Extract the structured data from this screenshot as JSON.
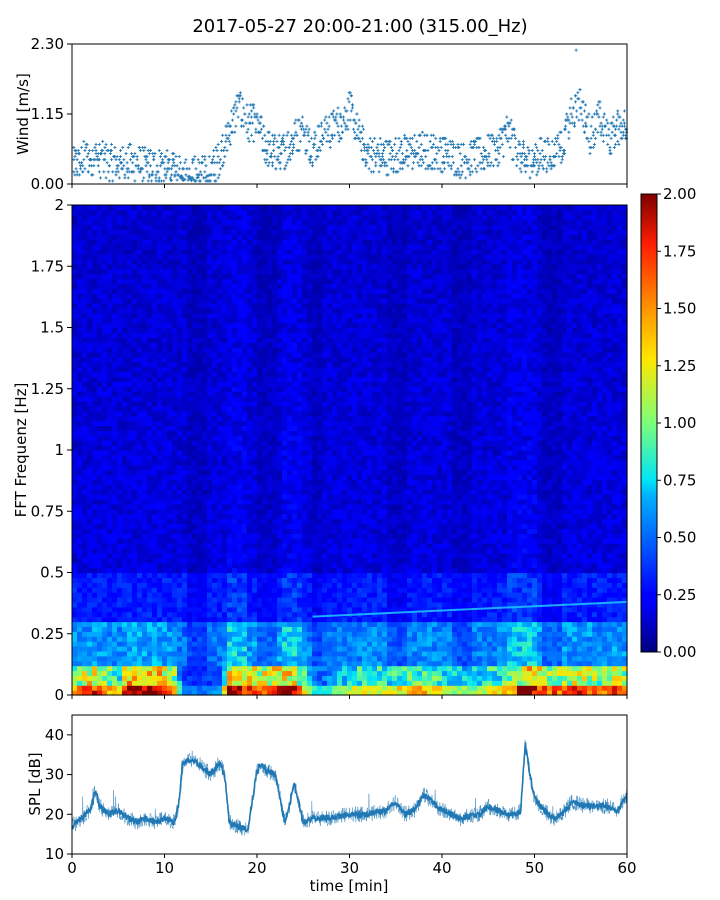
{
  "figure": {
    "title": "2017-05-27 20:00-21:00 (315.00_Hz)"
  },
  "chart_data": [
    {
      "type": "scatter",
      "panel": "wind",
      "title": "",
      "xlabel": "",
      "ylabel": "Wind [m/s]",
      "xlim": [
        0,
        60
      ],
      "ylim": [
        0,
        2.3
      ],
      "yticks": [
        0.0,
        1.15,
        2.3
      ],
      "ytick_labels": [
        "0.00",
        "1.15",
        "2.30"
      ],
      "xticks": [
        0,
        10,
        20,
        30,
        40,
        50,
        60
      ],
      "marker": "+",
      "color": "#1f77b4",
      "series_profile": {
        "x": [
          0,
          2,
          4,
          6,
          8,
          10,
          12,
          14,
          15,
          16,
          17,
          18,
          19,
          20,
          21,
          22,
          23,
          24,
          25,
          26,
          27,
          28,
          29,
          30,
          31,
          32,
          34,
          36,
          38,
          40,
          42,
          44,
          46,
          47,
          48,
          49,
          50,
          52,
          53,
          54,
          55,
          56,
          57,
          58,
          59,
          60
        ],
        "y": [
          0.3,
          0.45,
          0.35,
          0.35,
          0.3,
          0.3,
          0.15,
          0.15,
          0.2,
          0.45,
          0.9,
          1.25,
          1.0,
          1.0,
          0.6,
          0.5,
          0.55,
          0.75,
          0.85,
          0.6,
          0.75,
          0.9,
          1.0,
          1.25,
          0.8,
          0.5,
          0.45,
          0.5,
          0.55,
          0.5,
          0.4,
          0.45,
          0.6,
          0.85,
          0.6,
          0.35,
          0.45,
          0.5,
          0.65,
          1.1,
          1.3,
          0.8,
          1.1,
          0.7,
          0.95,
          1.0
        ]
      },
      "peak": {
        "x": 54.5,
        "y": 2.2
      }
    },
    {
      "type": "heatmap",
      "panel": "spectrogram",
      "title": "",
      "xlabel": "",
      "ylabel": "FFT Frequenz [Hz]",
      "xlim": [
        0,
        60
      ],
      "ylim": [
        0,
        2
      ],
      "yticks": [
        0,
        0.25,
        0.5,
        0.75,
        1,
        1.25,
        1.5,
        1.75,
        2
      ],
      "ytick_labels": [
        "0",
        "0.25",
        "0.5",
        "0.75",
        "1",
        "1.25",
        "1.5",
        "1.75",
        "2"
      ],
      "colormap": "jet",
      "colorbar": {
        "range": [
          0,
          2
        ],
        "ticks": [
          0.0,
          0.25,
          0.5,
          0.75,
          1.0,
          1.25,
          1.5,
          1.75,
          2.0
        ],
        "tick_labels": [
          "0.00",
          "0.25",
          "0.50",
          "0.75",
          "1.00",
          "1.25",
          "1.50",
          "1.75",
          "2.00"
        ]
      },
      "low_band_intensity": {
        "x": [
          0,
          2,
          5,
          6,
          9,
          11,
          12,
          14,
          16,
          17,
          19,
          20,
          22,
          24,
          25,
          26,
          27,
          28,
          30,
          32,
          34,
          36,
          38,
          41,
          43,
          45,
          47,
          49,
          51,
          53,
          55,
          57,
          59,
          60
        ],
        "level": [
          1.5,
          1.8,
          1.2,
          2.0,
          2.0,
          1.6,
          0.6,
          0.5,
          0.7,
          1.9,
          1.8,
          1.7,
          1.8,
          1.9,
          1.3,
          0.9,
          0.7,
          0.9,
          1.1,
          1.3,
          1.2,
          1.3,
          1.4,
          1.1,
          1.0,
          1.2,
          1.3,
          2.0,
          1.7,
          1.6,
          1.7,
          1.5,
          1.7,
          1.6
        ]
      },
      "tonal_line": {
        "x": [
          26,
          60
        ],
        "freq": [
          0.32,
          0.38
        ]
      }
    },
    {
      "type": "line",
      "panel": "spl",
      "title": "",
      "xlabel": "time [min]",
      "ylabel": "SPL [dB]",
      "xlim": [
        0,
        60
      ],
      "ylim": [
        10,
        45
      ],
      "yticks": [
        10,
        20,
        30,
        40
      ],
      "ytick_labels": [
        "10",
        "20",
        "30",
        "40"
      ],
      "xticks": [
        0,
        10,
        20,
        30,
        40,
        50,
        60
      ],
      "xtick_labels": [
        "0",
        "10",
        "20",
        "30",
        "40",
        "50",
        "60"
      ],
      "color": "#1f77b4",
      "series": [
        {
          "x": [
            0,
            1,
            2,
            2.5,
            3,
            4,
            5,
            6,
            7,
            8,
            9,
            10,
            11,
            11.5,
            12,
            13,
            14,
            15,
            16,
            16.5,
            17,
            18,
            19,
            20,
            20.5,
            21,
            22,
            23,
            23.5,
            24,
            25,
            26,
            28,
            30,
            32,
            34,
            35,
            36,
            37,
            38,
            40,
            42,
            44,
            45,
            46,
            47,
            48,
            48.5,
            49,
            49.5,
            50,
            51,
            52,
            53,
            54,
            56,
            58,
            59,
            60
          ],
          "y": [
            17,
            19,
            21,
            26,
            22,
            20,
            21,
            19,
            18,
            19,
            18,
            19,
            18,
            22,
            33,
            34,
            32,
            30,
            33,
            30,
            18,
            17,
            16,
            31,
            33,
            31,
            30,
            18,
            22,
            28,
            18,
            19,
            19,
            20,
            20,
            21,
            23,
            20,
            21,
            25,
            21,
            19,
            20,
            22,
            21,
            20,
            20,
            21,
            38,
            30,
            24,
            21,
            19,
            20,
            23,
            22,
            22,
            21,
            25
          ]
        }
      ]
    }
  ]
}
